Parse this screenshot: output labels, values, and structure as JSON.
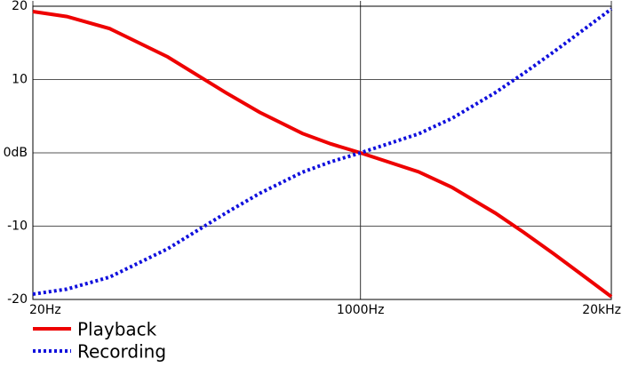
{
  "chart_data": {
    "type": "line",
    "x": [
      20,
      30,
      50,
      100,
      200,
      300,
      500,
      700,
      1000,
      2000,
      3000,
      5000,
      7000,
      10000,
      15000,
      20000
    ],
    "series": [
      {
        "name": "Playback",
        "color": "#ee0000",
        "style": "solid",
        "values": [
          19.27,
          18.59,
          16.95,
          13.09,
          8.22,
          5.53,
          2.64,
          1.23,
          0,
          -2.59,
          -4.74,
          -8.21,
          -10.82,
          -13.73,
          -17.17,
          -19.62
        ]
      },
      {
        "name": "Recording",
        "color": "#1010dd",
        "style": "dotted",
        "values": [
          -19.27,
          -18.59,
          -16.95,
          -13.09,
          -8.22,
          -5.53,
          -2.64,
          -1.23,
          0,
          2.59,
          4.74,
          8.21,
          10.82,
          13.73,
          17.17,
          19.62
        ]
      }
    ],
    "xscale": "log",
    "xlim": [
      20,
      20000
    ],
    "xticks": [
      {
        "value": 20,
        "label": "20Hz"
      },
      {
        "value": 1000,
        "label": "1000Hz"
      },
      {
        "value": 20000,
        "label": "20kHz"
      }
    ],
    "ylim": [
      -20,
      20
    ],
    "yticks": [
      20,
      10,
      {
        "value": 0,
        "label": "0dB"
      },
      -10,
      -20
    ],
    "grid": true,
    "legend": "bottom-left"
  }
}
